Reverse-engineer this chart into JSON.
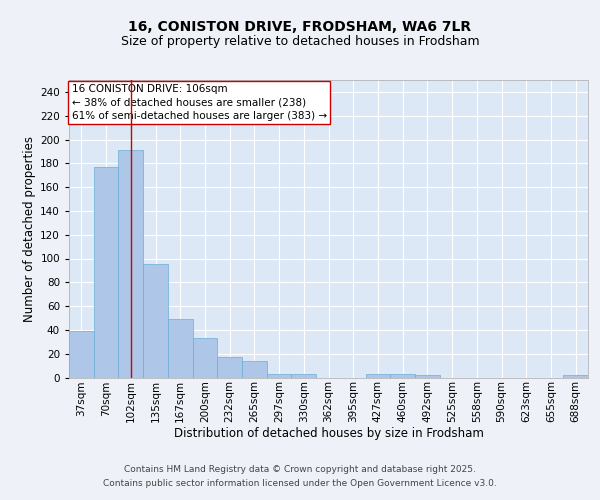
{
  "title_line1": "16, CONISTON DRIVE, FRODSHAM, WA6 7LR",
  "title_line2": "Size of property relative to detached houses in Frodsham",
  "xlabel": "Distribution of detached houses by size in Frodsham",
  "ylabel": "Number of detached properties",
  "categories": [
    "37sqm",
    "70sqm",
    "102sqm",
    "135sqm",
    "167sqm",
    "200sqm",
    "232sqm",
    "265sqm",
    "297sqm",
    "330sqm",
    "362sqm",
    "395sqm",
    "427sqm",
    "460sqm",
    "492sqm",
    "525sqm",
    "558sqm",
    "590sqm",
    "623sqm",
    "655sqm",
    "688sqm"
  ],
  "values": [
    39,
    177,
    191,
    95,
    49,
    33,
    17,
    14,
    3,
    3,
    0,
    0,
    3,
    3,
    2,
    0,
    0,
    0,
    0,
    0,
    2
  ],
  "bar_color": "#aec6e8",
  "bar_edgecolor": "#6aaed6",
  "highlight_index": 2,
  "highlight_color": "#cc0000",
  "ylim": [
    0,
    250
  ],
  "yticks": [
    0,
    20,
    40,
    60,
    80,
    100,
    120,
    140,
    160,
    180,
    200,
    220,
    240
  ],
  "annotation_title": "16 CONISTON DRIVE: 106sqm",
  "annotation_line2": "← 38% of detached houses are smaller (238)",
  "annotation_line3": "61% of semi-detached houses are larger (383) →",
  "annotation_box_facecolor": "#ffffff",
  "annotation_box_edgecolor": "#cc0000",
  "footnote_line1": "Contains HM Land Registry data © Crown copyright and database right 2025.",
  "footnote_line2": "Contains public sector information licensed under the Open Government Licence v3.0.",
  "background_color": "#eef2f8",
  "plot_background": "#dce8f5",
  "grid_color": "#ffffff",
  "title_fontsize": 10,
  "subtitle_fontsize": 9,
  "axis_label_fontsize": 8.5,
  "tick_fontsize": 7.5,
  "annotation_fontsize": 7.5,
  "footnote_fontsize": 6.5
}
